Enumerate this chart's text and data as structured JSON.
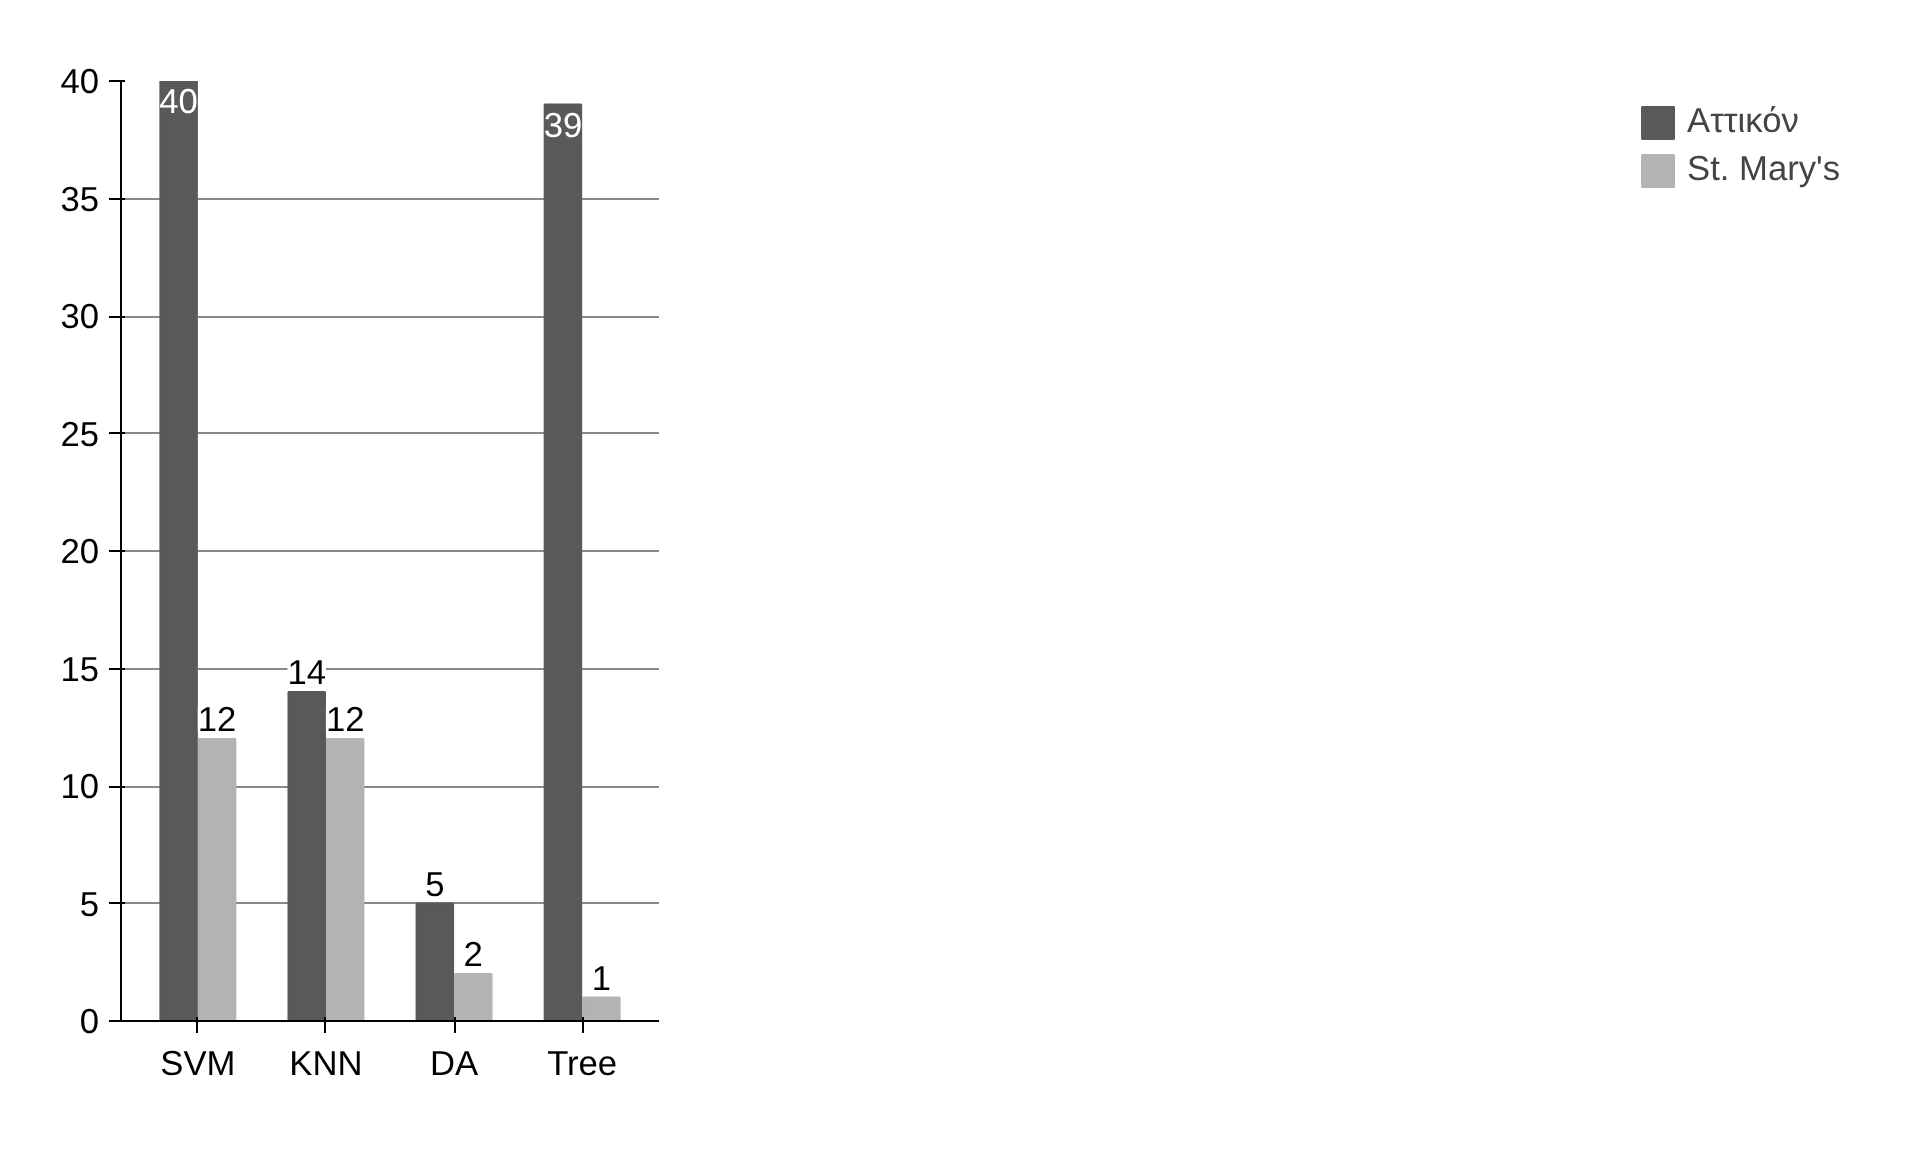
{
  "chart_data": {
    "type": "bar",
    "categories": [
      "SVM",
      "KNN",
      "DA",
      "Tree"
    ],
    "series": [
      {
        "name": "Αττικόν",
        "color": "#595959",
        "values": [
          40,
          14,
          5,
          39
        ]
      },
      {
        "name": "St. Mary's",
        "color": "#b3b3b3",
        "values": [
          12,
          12,
          2,
          1
        ]
      }
    ],
    "ylim": [
      0,
      40
    ],
    "yticks": [
      0,
      5,
      10,
      15,
      20,
      25,
      30,
      35,
      40
    ],
    "grid": "y",
    "legend": "right",
    "data_labels": true
  }
}
